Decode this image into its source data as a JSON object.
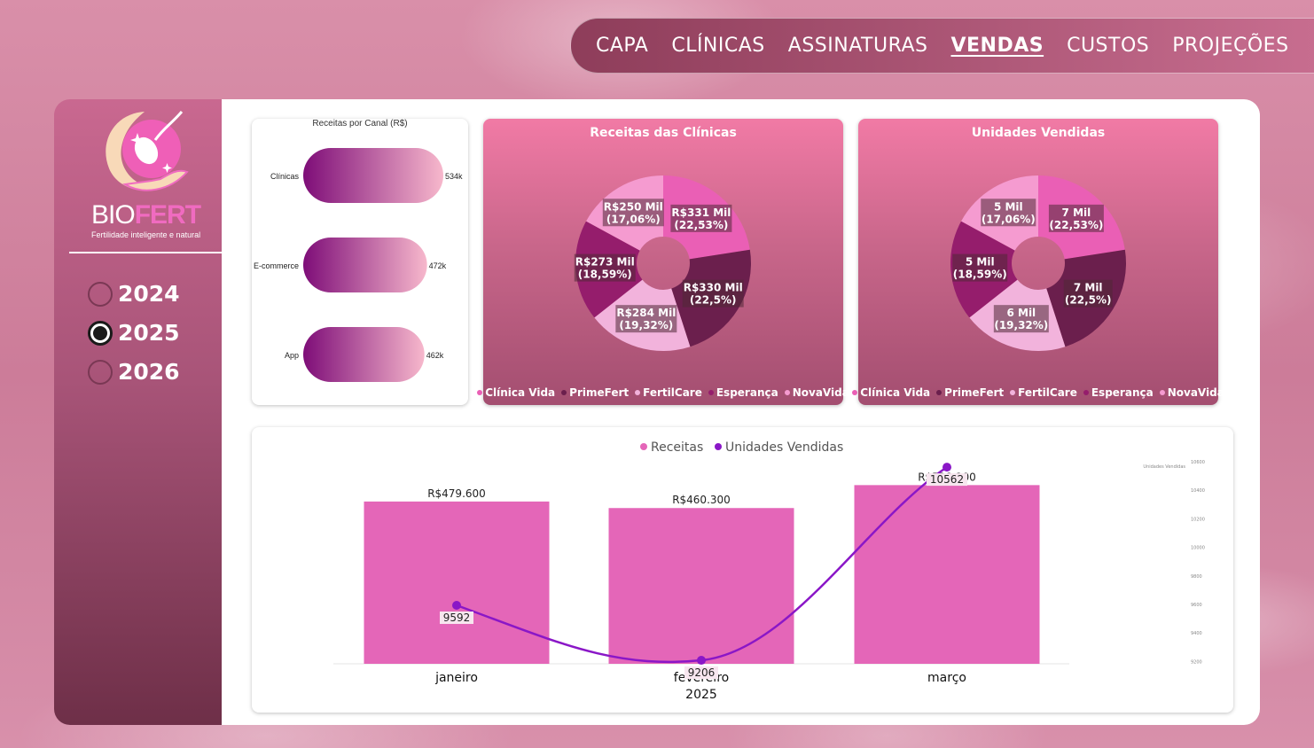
{
  "nav": {
    "items": [
      {
        "label": "CAPA",
        "active": false
      },
      {
        "label": "CLÍNICAS",
        "active": false
      },
      {
        "label": "ASSINATURAS",
        "active": false
      },
      {
        "label": "VENDAS",
        "active": true
      },
      {
        "label": "CUSTOS",
        "active": false
      },
      {
        "label": "PROJEÇÕES",
        "active": false
      }
    ]
  },
  "sidebar": {
    "brand_bio": "BIO",
    "brand_fert": "FERT",
    "tagline": "Fertilidade inteligente e natural",
    "years": [
      {
        "label": "2024",
        "checked": false
      },
      {
        "label": "2025",
        "checked": true
      },
      {
        "label": "2026",
        "checked": false
      }
    ]
  },
  "colors": {
    "clinica_vida": "#ea5fb5",
    "primefert": "#6b1f4d",
    "fertilcare": "#f2b3dc",
    "esperanca": "#951d6c",
    "novavida": "#f59bd0",
    "bar": "#e466b8",
    "line": "#8a17c7"
  },
  "chart_data": [
    {
      "type": "bar",
      "orientation": "horizontal",
      "title": "Receitas por Canal (R$)",
      "categories": [
        "Clínicas",
        "E-commerce",
        "App"
      ],
      "value_labels": [
        "534k",
        "472k",
        "462k"
      ],
      "values": [
        534,
        472,
        462
      ]
    },
    {
      "type": "pie",
      "title": "Receitas das Clínicas",
      "categories": [
        "Clínica Vida",
        "PrimeFert",
        "FertilCare",
        "Esperança",
        "NovaVida"
      ],
      "values": [
        22.53,
        22.5,
        19.32,
        18.59,
        17.06
      ],
      "labels": [
        [
          "R$331 Mil",
          "(22,53%)"
        ],
        [
          "R$330 Mil",
          "(22,5%)"
        ],
        [
          "R$284 Mil",
          "(19,32%)"
        ],
        [
          "R$273 Mil",
          "(18,59%)"
        ],
        [
          "R$250 Mil",
          "(17,06%)"
        ]
      ]
    },
    {
      "type": "pie",
      "title": "Unidades Vendidas",
      "categories": [
        "Clínica Vida",
        "PrimeFert",
        "FertilCare",
        "Esperança",
        "NovaVida"
      ],
      "values": [
        22.53,
        22.5,
        19.32,
        18.59,
        17.06
      ],
      "labels": [
        [
          "7 Mil",
          "(22,53%)"
        ],
        [
          "7 Mil",
          "(22,5%)"
        ],
        [
          "6 Mil",
          "(19,32%)"
        ],
        [
          "5 Mil",
          "(18,59%)"
        ],
        [
          "5 Mil",
          "(17,06%)"
        ]
      ]
    },
    {
      "type": "bar",
      "title": "",
      "categories": [
        "janeiro",
        "fevereiro",
        "março"
      ],
      "year_label": "2025",
      "legend": [
        "Receitas",
        "Unidades Vendidas"
      ],
      "series": [
        {
          "name": "Receitas",
          "type": "bar",
          "values": [
            479600,
            460300,
            528100
          ],
          "labels": [
            "R$479.600",
            "R$460.300",
            "R$528.100"
          ]
        },
        {
          "name": "Unidades Vendidas",
          "type": "line",
          "values": [
            9592,
            9206,
            10562
          ],
          "labels": [
            "9592",
            "9206",
            "10562"
          ]
        }
      ],
      "secondary_axis": {
        "title": "Unidades Vendidas",
        "ticks": [
          "10600",
          "10400",
          "10200",
          "10000",
          "9800",
          "9600",
          "9400",
          "9200"
        ],
        "ylim": [
          9200,
          10600
        ]
      }
    }
  ]
}
